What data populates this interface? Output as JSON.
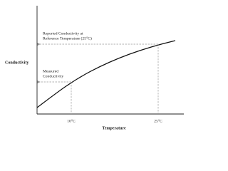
{
  "diagram": {
    "y_axis_label": "Conductivity",
    "x_axis_label": "Temperature",
    "x_labels": [
      "10°C",
      "25°C"
    ],
    "annotations": [
      {
        "lines": [
          "Reported Conductivity at",
          "Reference Temperature (25°C)"
        ]
      },
      {
        "lines": [
          "Measured",
          "Conductivity"
        ]
      }
    ]
  }
}
